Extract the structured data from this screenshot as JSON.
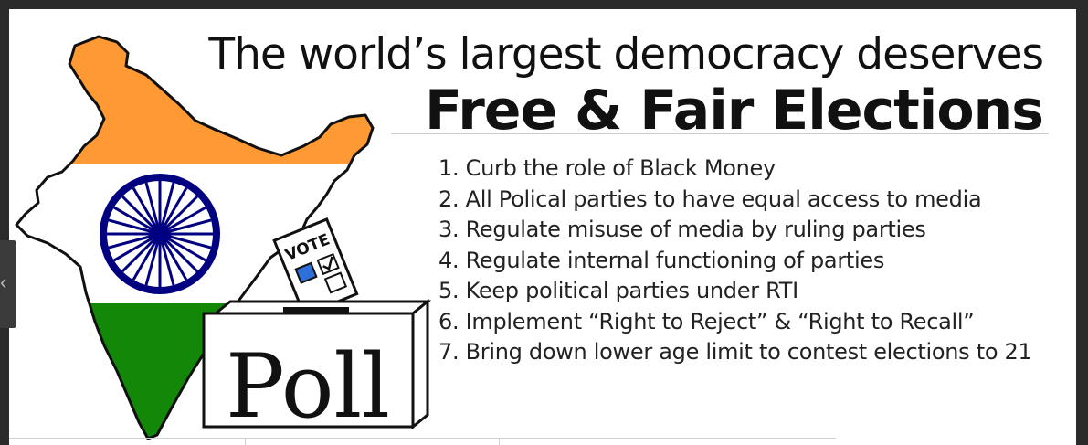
{
  "heading": {
    "line1": "The world’s largest democracy deserves",
    "line2": "Free & Fair Elections"
  },
  "points": [
    "1. Curb the role of Black Money",
    "2. All Polical parties to have equal access to media",
    "3. Regulate misuse of media by ruling parties",
    "4. Regulate internal functioning of parties",
    "5. Keep political parties under RTI",
    "6. Implement “Right to Reject” & “Right to Recall”",
    "7. Bring down lower age limit to contest elections to 21"
  ],
  "illustration": {
    "ballot_label": "VOTE",
    "box_label": "Poll",
    "icon": "india-map-flag-icon",
    "colors": {
      "saffron": "#ff9933",
      "white": "#ffffff",
      "green": "#138808",
      "navy": "#000080",
      "checkbox_blue": "#2e6fd8"
    }
  },
  "side_control": {
    "icon": "chevron-left-icon",
    "glyph": "‹"
  }
}
